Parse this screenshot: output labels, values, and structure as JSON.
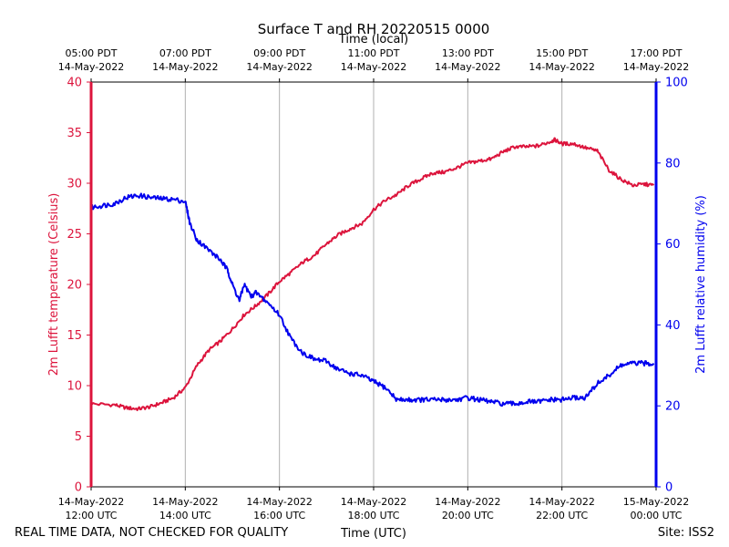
{
  "chart_data": {
    "type": "line",
    "title": "Surface T and RH 20220515 0000",
    "xlabel": "Time (UTC)",
    "x2label": "Time (local)",
    "ylabel": "2m Lufft temperature (Celsius)",
    "y2label": "2m Lufft relative humidity (%)",
    "xlim_hours_utc": [
      12,
      24
    ],
    "ylim": [
      0,
      40
    ],
    "y2lim": [
      0,
      100
    ],
    "yticks": [
      0,
      5,
      10,
      15,
      20,
      25,
      30,
      35,
      40
    ],
    "y2ticks": [
      0,
      20,
      40,
      60,
      80,
      100
    ],
    "grid": "vertical",
    "x_ticks": [
      {
        "hour": 12,
        "utc_date": "14-May-2022",
        "utc_time": "12:00 UTC",
        "local_time": "05:00 PDT",
        "local_date": "14-May-2022"
      },
      {
        "hour": 14,
        "utc_date": "14-May-2022",
        "utc_time": "14:00 UTC",
        "local_time": "07:00 PDT",
        "local_date": "14-May-2022"
      },
      {
        "hour": 16,
        "utc_date": "14-May-2022",
        "utc_time": "16:00 UTC",
        "local_time": "09:00 PDT",
        "local_date": "14-May-2022"
      },
      {
        "hour": 18,
        "utc_date": "14-May-2022",
        "utc_time": "18:00 UTC",
        "local_time": "11:00 PDT",
        "local_date": "14-May-2022"
      },
      {
        "hour": 20,
        "utc_date": "14-May-2022",
        "utc_time": "20:00 UTC",
        "local_time": "13:00 PDT",
        "local_date": "14-May-2022"
      },
      {
        "hour": 22,
        "utc_date": "14-May-2022",
        "utc_time": "22:00 UTC",
        "local_time": "15:00 PDT",
        "local_date": "14-May-2022"
      },
      {
        "hour": 24,
        "utc_date": "15-May-2022",
        "utc_time": "00:00 UTC",
        "local_time": "17:00 PDT",
        "local_date": "14-May-2022"
      }
    ],
    "series": [
      {
        "name": "2m Lufft temperature",
        "axis": "left",
        "color": "#dc143c",
        "x": [
          12.0,
          12.5,
          12.75,
          13.0,
          13.25,
          13.5,
          13.75,
          14.0,
          14.25,
          14.5,
          14.75,
          15.0,
          15.25,
          15.5,
          15.75,
          16.0,
          16.25,
          16.5,
          16.75,
          17.0,
          17.25,
          17.5,
          17.75,
          18.0,
          18.25,
          18.5,
          18.75,
          19.0,
          19.25,
          19.5,
          19.75,
          20.0,
          20.25,
          20.5,
          20.75,
          21.0,
          21.25,
          21.5,
          21.75,
          21.85,
          22.0,
          22.25,
          22.5,
          22.75,
          23.0,
          23.25,
          23.5,
          23.75,
          23.95
        ],
        "values": [
          8.2,
          8.1,
          7.8,
          7.7,
          7.9,
          8.3,
          8.8,
          9.8,
          12.0,
          13.5,
          14.4,
          15.6,
          17.0,
          17.9,
          19.0,
          20.3,
          21.2,
          22.2,
          22.9,
          24.0,
          24.9,
          25.5,
          26.0,
          27.4,
          28.3,
          28.9,
          29.8,
          30.4,
          31.0,
          31.1,
          31.5,
          32.0,
          32.2,
          32.4,
          33.1,
          33.6,
          33.6,
          33.7,
          34.1,
          34.3,
          33.9,
          33.9,
          33.5,
          33.2,
          31.3,
          30.4,
          29.8,
          29.9,
          29.8
        ]
      },
      {
        "name": "2m Lufft relative humidity",
        "axis": "right",
        "color": "#0000ee",
        "x": [
          12.0,
          12.25,
          12.5,
          12.75,
          13.0,
          13.25,
          13.5,
          13.75,
          14.0,
          14.1,
          14.25,
          14.5,
          14.75,
          14.9,
          15.0,
          15.15,
          15.25,
          15.4,
          15.5,
          15.75,
          16.0,
          16.25,
          16.5,
          16.75,
          17.0,
          17.25,
          17.5,
          17.75,
          18.0,
          18.25,
          18.5,
          18.75,
          19.0,
          19.25,
          19.5,
          19.75,
          20.0,
          20.25,
          20.5,
          20.75,
          21.0,
          21.25,
          21.5,
          21.75,
          22.0,
          22.25,
          22.5,
          22.75,
          23.0,
          23.25,
          23.5,
          23.75,
          23.95
        ],
        "values": [
          69,
          69.5,
          70,
          71.5,
          72,
          71.5,
          71.2,
          71,
          70.5,
          65,
          61,
          58.5,
          56,
          53.5,
          50,
          46,
          50,
          47,
          48,
          45.5,
          42.5,
          36.5,
          33,
          31.5,
          31,
          29,
          28,
          27.5,
          26,
          24.5,
          21.5,
          21.5,
          21.5,
          21.5,
          21.5,
          21.5,
          22,
          21.5,
          21,
          20.5,
          20.5,
          21,
          21,
          21.5,
          21.5,
          22,
          22,
          25.5,
          27.5,
          30,
          30.5,
          30.5,
          30.5
        ]
      }
    ]
  },
  "footer": {
    "disclaimer": "REAL TIME DATA, NOT CHECKED FOR QUALITY",
    "site": "Site: ISS2"
  },
  "colors": {
    "temperature": "#dc143c",
    "humidity": "#0000ee",
    "grid": "#b0b0b0",
    "axis": "#000000"
  }
}
